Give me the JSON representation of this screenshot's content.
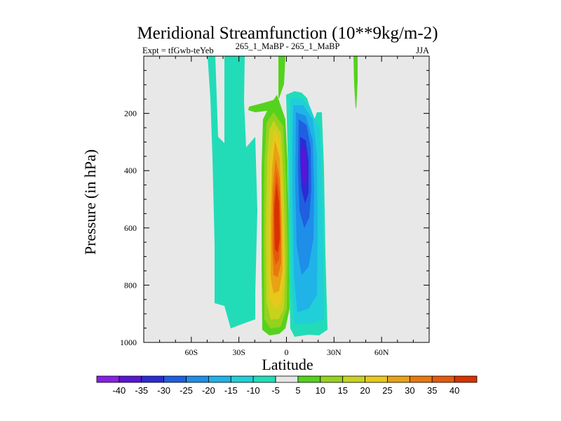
{
  "chart_data": {
    "type": "contour",
    "title": "Meridional Streamfunction (10**9kg/m-2)",
    "subtitle_left": "Expt = tfGwb-teYeb",
    "subtitle_center": "265_1_MaBP - 265_1_MaBP",
    "subtitle_right": "JJA",
    "xlabel": "Latitude",
    "ylabel": "Pressure (in hPa)",
    "xlim": [
      -90,
      90
    ],
    "ylim": [
      1000,
      0
    ],
    "x_ticks": [
      {
        "value": -60,
        "label": "60S"
      },
      {
        "value": -30,
        "label": "30S"
      },
      {
        "value": 0,
        "label": "0"
      },
      {
        "value": 30,
        "label": "30N"
      },
      {
        "value": 60,
        "label": "60N"
      }
    ],
    "y_ticks": [
      {
        "value": 200,
        "label": "200"
      },
      {
        "value": 400,
        "label": "400"
      },
      {
        "value": 600,
        "label": "600"
      },
      {
        "value": 800,
        "label": "800"
      },
      {
        "value": 1000,
        "label": "1000"
      }
    ],
    "colorbar": {
      "labels": [
        "-40",
        "-35",
        "-30",
        "-25",
        "-20",
        "-15",
        "-10",
        "-5",
        "5",
        "10",
        "15",
        "20",
        "25",
        "30",
        "35",
        "40"
      ],
      "colors": [
        "#8a1fe8",
        "#5a14d8",
        "#2a2cd4",
        "#1f5fe0",
        "#1e8ee8",
        "#1fb3e8",
        "#20cfd8",
        "#22dcb8",
        "#e6e6e6",
        "#55d21e",
        "#95d21e",
        "#c8d21e",
        "#e8c81a",
        "#e8a214",
        "#e8780f",
        "#e45a0c",
        "#d83200"
      ]
    },
    "background": "#e8e8e8",
    "features": [
      {
        "name": "Hadley cell maximum (positive)",
        "center_lat": -4,
        "center_p": 550,
        "value": 40
      },
      {
        "name": "Hadley cell minimum (negative)",
        "center_lat": 11,
        "center_p": 350,
        "value": -35
      },
      {
        "name": "Southern weak negative cell",
        "center_lat": -32,
        "center_p": 600,
        "value": -5
      },
      {
        "name": "Stratospheric positive band",
        "center_lat": -2,
        "center_p": 50,
        "value": 5
      },
      {
        "name": "Northern upper positive streak",
        "center_lat": 44,
        "center_p": 60,
        "value": 5
      }
    ]
  }
}
